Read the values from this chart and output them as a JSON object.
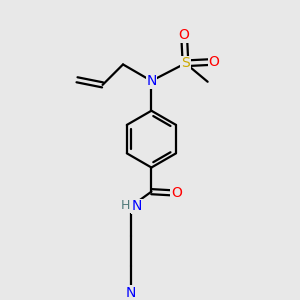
{
  "bg_color": "#e8e8e8",
  "atom_colors": {
    "C": "#000000",
    "N": "#0000ff",
    "O": "#ff0000",
    "S": "#ccaa00",
    "H": "#507a7a"
  },
  "bond_color": "#000000",
  "bond_width": 1.6,
  "figsize": [
    3.0,
    3.0
  ],
  "dpi": 100
}
